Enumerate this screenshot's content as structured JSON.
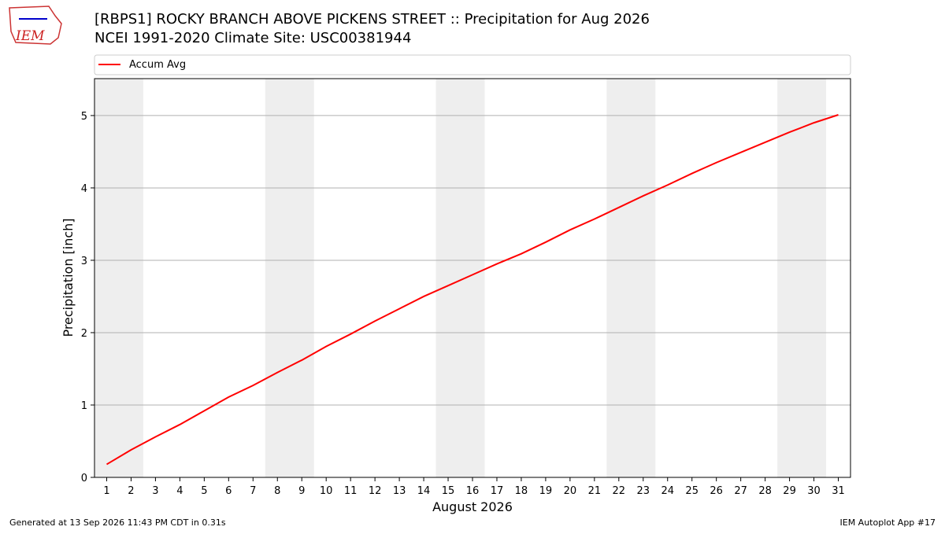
{
  "logo_text": "IEM",
  "footer": {
    "left": "Generated at 13 Sep 2026 11:43 PM CDT in 0.31s",
    "right": "IEM Autoplot App #17"
  },
  "chart_data": {
    "type": "line",
    "title": "[RBPS1] ROCKY BRANCH ABOVE PICKENS STREET :: Precipitation for Aug 2026",
    "subtitle": "NCEI 1991-2020 Climate Site: USC00381944",
    "x_label": "August 2026",
    "y_label": "Precipitation [inch]",
    "x": [
      1,
      2,
      3,
      4,
      5,
      6,
      7,
      8,
      9,
      10,
      11,
      12,
      13,
      14,
      15,
      16,
      17,
      18,
      19,
      20,
      21,
      22,
      23,
      24,
      25,
      26,
      27,
      28,
      29,
      30,
      31
    ],
    "series": [
      {
        "name": "Accum Avg",
        "color": "#ff0000",
        "values": [
          0.18,
          0.38,
          0.56,
          0.73,
          0.92,
          1.11,
          1.27,
          1.45,
          1.62,
          1.81,
          1.98,
          2.16,
          2.33,
          2.5,
          2.65,
          2.8,
          2.95,
          3.09,
          3.25,
          3.42,
          3.57,
          3.73,
          3.89,
          4.04,
          4.2,
          4.35,
          4.49,
          4.63,
          4.77,
          4.9,
          5.01
        ]
      }
    ],
    "weekend_bands": [
      [
        0.5,
        2.5
      ],
      [
        7.5,
        9.5
      ],
      [
        14.5,
        16.5
      ],
      [
        21.5,
        23.5
      ],
      [
        28.5,
        30.5
      ]
    ],
    "band_color": "#eeeeee",
    "xlim": [
      0.5,
      31.5
    ],
    "xticks": [
      1,
      2,
      3,
      4,
      5,
      6,
      7,
      8,
      9,
      10,
      11,
      12,
      13,
      14,
      15,
      16,
      17,
      18,
      19,
      20,
      21,
      22,
      23,
      24,
      25,
      26,
      27,
      28,
      29,
      30,
      31
    ],
    "ylim": [
      0,
      5.51
    ],
    "yticks": [
      0,
      1,
      2,
      3,
      4,
      5
    ],
    "grid": true,
    "legend": "top"
  }
}
